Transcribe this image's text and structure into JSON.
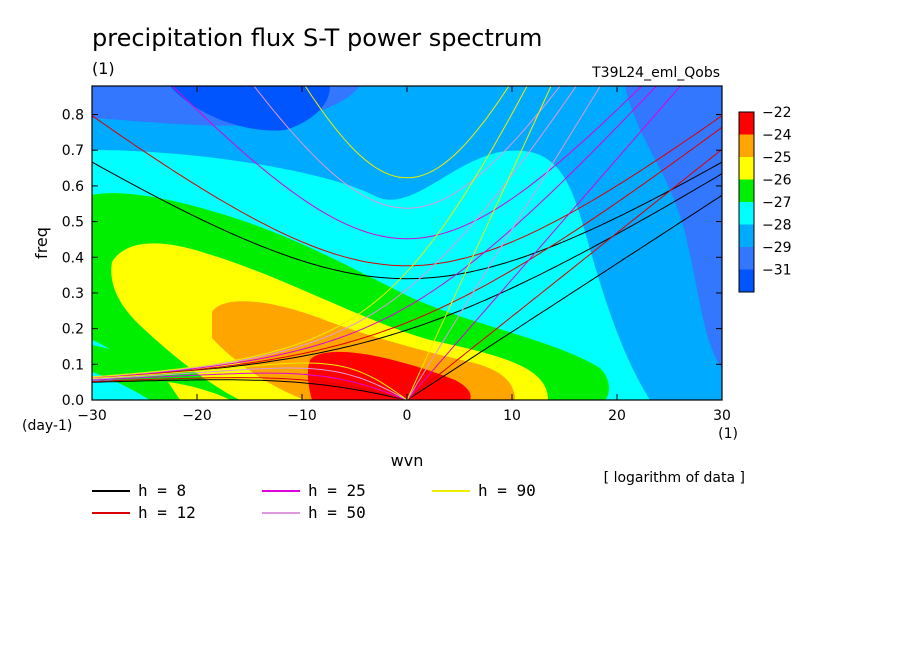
{
  "chart_data": {
    "type": "contour",
    "title": "precipitation flux S-T power spectrum",
    "title_units": "(1)",
    "experiment_label": "T39L24_eml_Qobs",
    "xlabel": "wvn",
    "x_unit": "(1)",
    "ylabel": "freq",
    "y_unit": "(day-1)",
    "note": "[ logarithm of data ]",
    "xlim": [
      -30,
      30
    ],
    "ylim": [
      0,
      0.88
    ],
    "x_ticks": [
      -30,
      -20,
      -10,
      0,
      10,
      20,
      30
    ],
    "y_ticks": [
      0.0,
      0.1,
      0.2,
      0.3,
      0.4,
      0.5,
      0.6,
      0.7,
      0.8
    ],
    "contour_levels": [
      {
        "label": "-22",
        "color": "#ff0000"
      },
      {
        "label": "-24",
        "color": "#ffa500"
      },
      {
        "label": "-25",
        "color": "#ffff00"
      },
      {
        "label": "-26",
        "color": "#00ee00"
      },
      {
        "label": "-27",
        "color": "#00ffff"
      },
      {
        "label": "-28",
        "color": "#00aaff"
      },
      {
        "label": "-29",
        "color": "#3377ff"
      },
      {
        "label": "-31",
        "color": "#0055ff"
      }
    ],
    "dispersion_curves": [
      {
        "label": "h = 8",
        "h": 8,
        "color": "#000000"
      },
      {
        "label": "h = 12",
        "h": 12,
        "color": "#dd0000"
      },
      {
        "label": "h = 25",
        "h": 25,
        "color": "#dd00dd"
      },
      {
        "label": "h = 50",
        "h": 50,
        "color": "#dd99dd"
      },
      {
        "label": "h = 90",
        "h": 90,
        "color": "#eeee00"
      }
    ]
  }
}
